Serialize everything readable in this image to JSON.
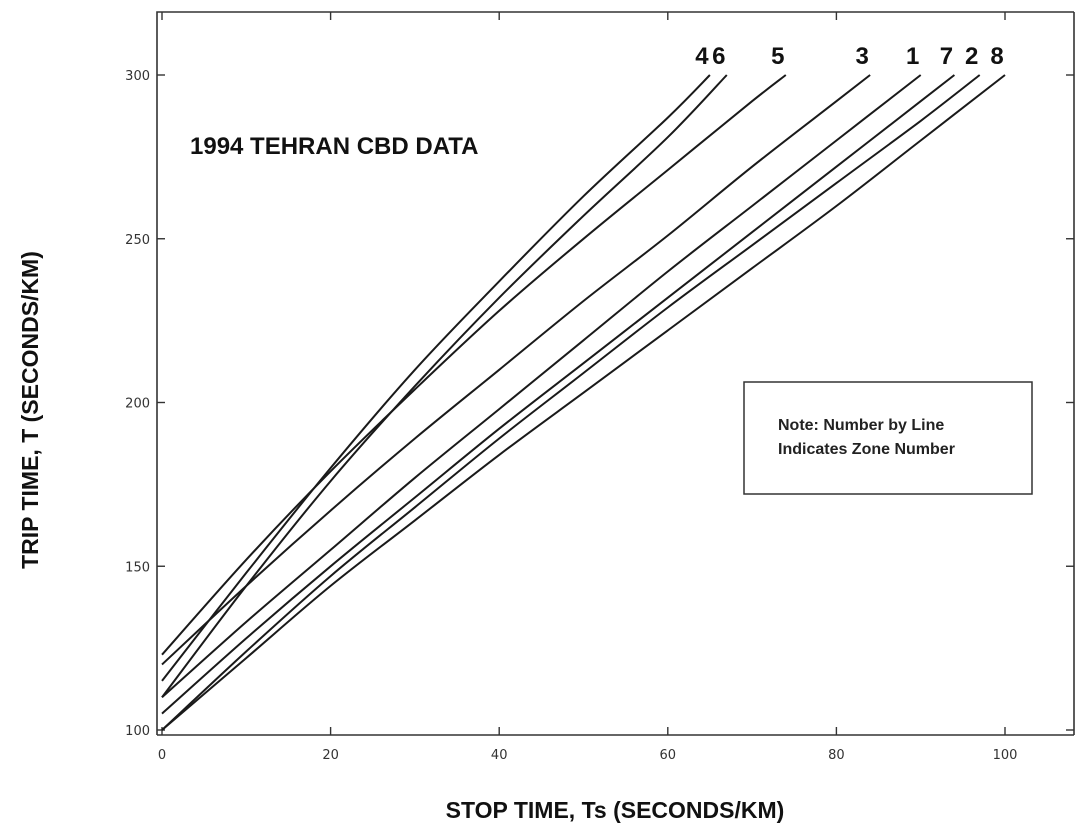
{
  "chart_data": {
    "type": "line",
    "title": "1994 TEHRAN CBD DATA",
    "xlabel": "STOP TIME, Ts (SECONDS/KM)",
    "ylabel": "TRIP TIME, T (SECONDS/KM)",
    "xlim": [
      0,
      110
    ],
    "ylim": [
      100,
      320
    ],
    "xticks": [
      0,
      20,
      40,
      60,
      80,
      100
    ],
    "yticks": [
      100,
      150,
      200,
      250,
      300
    ],
    "grid": false,
    "note": [
      "Note: Number by Line",
      "Indicates Zone Number"
    ],
    "series": [
      {
        "name": "4",
        "x": [
          0,
          10,
          20,
          30,
          40,
          50,
          60,
          65
        ],
        "y": [
          115,
          148,
          180,
          210,
          237,
          263,
          287,
          300
        ]
      },
      {
        "name": "6",
        "x": [
          0,
          10,
          20,
          30,
          40,
          50,
          60,
          67
        ],
        "y": [
          110,
          144,
          176,
          205,
          232,
          257,
          281,
          300
        ]
      },
      {
        "name": "5",
        "x": [
          0,
          10,
          20,
          30,
          40,
          50,
          60,
          70,
          74
        ],
        "y": [
          123,
          152,
          179,
          204,
          228,
          250,
          271,
          292,
          300
        ]
      },
      {
        "name": "3",
        "x": [
          0,
          10,
          20,
          30,
          40,
          50,
          60,
          70,
          80,
          84
        ],
        "y": [
          120,
          144,
          167,
          189,
          210,
          231,
          251,
          272,
          292,
          300
        ]
      },
      {
        "name": "1",
        "x": [
          0,
          10,
          20,
          30,
          40,
          50,
          60,
          70,
          80,
          90
        ],
        "y": [
          110,
          133,
          155,
          177,
          198,
          219,
          240,
          260,
          280,
          300
        ]
      },
      {
        "name": "7",
        "x": [
          0,
          10,
          20,
          30,
          40,
          50,
          60,
          70,
          80,
          90,
          94
        ],
        "y": [
          105,
          128,
          150,
          171,
          192,
          212,
          232,
          252,
          272,
          292,
          300
        ]
      },
      {
        "name": "2",
        "x": [
          0,
          10,
          20,
          30,
          40,
          50,
          60,
          70,
          80,
          90,
          97
        ],
        "y": [
          100,
          124,
          147,
          168,
          189,
          209,
          229,
          248,
          267,
          286,
          300
        ]
      },
      {
        "name": "8",
        "x": [
          0,
          10,
          20,
          30,
          40,
          50,
          60,
          70,
          80,
          90,
          100
        ],
        "y": [
          100,
          122,
          144,
          164,
          184,
          203,
          222,
          241,
          260,
          280,
          300
        ]
      }
    ]
  }
}
